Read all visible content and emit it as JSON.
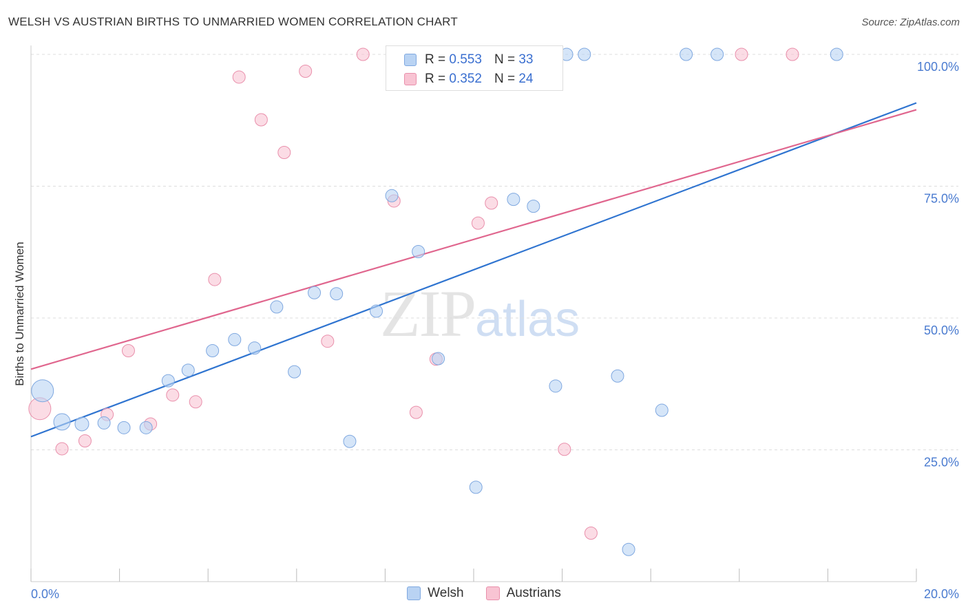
{
  "title": "WELSH VS AUSTRIAN BIRTHS TO UNMARRIED WOMEN CORRELATION CHART",
  "source": "Source: ZipAtlas.com",
  "watermark": {
    "zip": "ZIP",
    "atlas": "atlas"
  },
  "colors": {
    "welsh_fill": "#b9d3f3",
    "welsh_stroke": "#7fa8e0",
    "welsh_line": "#2f74d0",
    "austrians_fill": "#f8c4d3",
    "austrians_stroke": "#e98fab",
    "austrians_line": "#e0668e",
    "tick_text": "#4a7bd0",
    "grid": "#dddddd"
  },
  "legend": {
    "welsh": {
      "r_label": "R = ",
      "r_value": "0.553",
      "n_label": "N = ",
      "n_value": "33"
    },
    "austrians": {
      "r_label": "R = ",
      "r_value": "0.352",
      "n_label": "N = ",
      "n_value": "24"
    }
  },
  "chart_data": {
    "type": "scatter",
    "ylabel": "Births to Unmarried Women",
    "xlim": [
      0,
      20
    ],
    "ylim": [
      0,
      100
    ],
    "x_tick_labels": [
      "0.0%",
      "20.0%"
    ],
    "y_tick_labels": [
      "25.0%",
      "50.0%",
      "75.0%",
      "100.0%"
    ],
    "y_ticks": [
      25,
      50,
      75,
      100
    ],
    "grid": true,
    "legend_placement": "top-center",
    "series": [
      {
        "name": "Welsh",
        "points": [
          [
            0.26,
            36.2,
            16
          ],
          [
            0.7,
            30.3,
            12
          ],
          [
            1.15,
            29.9,
            10
          ],
          [
            1.65,
            30.1,
            9
          ],
          [
            2.1,
            29.2,
            9
          ],
          [
            2.6,
            29.2,
            9
          ],
          [
            3.1,
            38.1,
            9
          ],
          [
            3.55,
            40.1,
            9
          ],
          [
            4.1,
            43.8,
            9
          ],
          [
            4.6,
            45.9,
            9
          ],
          [
            5.05,
            44.3,
            9
          ],
          [
            5.55,
            52.1,
            9
          ],
          [
            5.95,
            39.8,
            9
          ],
          [
            6.4,
            54.8,
            9
          ],
          [
            6.9,
            54.6,
            9
          ],
          [
            7.2,
            26.6,
            9
          ],
          [
            7.8,
            51.3,
            9
          ],
          [
            8.15,
            73.2,
            9
          ],
          [
            8.75,
            62.6,
            9
          ],
          [
            9.2,
            42.3,
            9
          ],
          [
            10.05,
            17.9,
            9
          ],
          [
            10.4,
            100,
            9
          ],
          [
            10.9,
            72.5,
            9
          ],
          [
            11.35,
            71.2,
            9
          ],
          [
            11.85,
            37.1,
            9
          ],
          [
            12.1,
            100,
            9
          ],
          [
            12.5,
            100,
            9
          ],
          [
            13.25,
            39.0,
            9
          ],
          [
            13.5,
            6.1,
            9
          ],
          [
            14.25,
            32.5,
            9
          ],
          [
            14.8,
            100,
            9
          ],
          [
            15.5,
            100,
            9
          ],
          [
            18.2,
            100,
            9
          ]
        ]
      },
      {
        "name": "Austrians",
        "points": [
          [
            0.2,
            32.8,
            16
          ],
          [
            0.7,
            25.2,
            9
          ],
          [
            1.22,
            26.7,
            9
          ],
          [
            1.72,
            31.7,
            9
          ],
          [
            2.2,
            43.8,
            9
          ],
          [
            2.7,
            29.9,
            9
          ],
          [
            3.2,
            35.4,
            9
          ],
          [
            3.72,
            34.1,
            9
          ],
          [
            4.15,
            57.3,
            9
          ],
          [
            4.7,
            95.7,
            9
          ],
          [
            5.2,
            87.6,
            9
          ],
          [
            5.72,
            81.4,
            9
          ],
          [
            6.2,
            96.8,
            9
          ],
          [
            6.7,
            45.6,
            9
          ],
          [
            7.5,
            100,
            9
          ],
          [
            8.2,
            72.2,
            9
          ],
          [
            8.7,
            32.1,
            9
          ],
          [
            9.15,
            42.2,
            9
          ],
          [
            10.1,
            68.0,
            9
          ],
          [
            10.4,
            71.8,
            9
          ],
          [
            12.05,
            25.1,
            9
          ],
          [
            12.65,
            9.2,
            9
          ],
          [
            16.05,
            100,
            9
          ],
          [
            17.2,
            100,
            9
          ]
        ]
      }
    ],
    "trend_lines": [
      {
        "name": "Welsh",
        "x": [
          0,
          20
        ],
        "y": [
          27.5,
          90.8
        ]
      },
      {
        "name": "Austrians",
        "x": [
          0,
          20
        ],
        "y": [
          40.3,
          89.5
        ]
      }
    ]
  }
}
